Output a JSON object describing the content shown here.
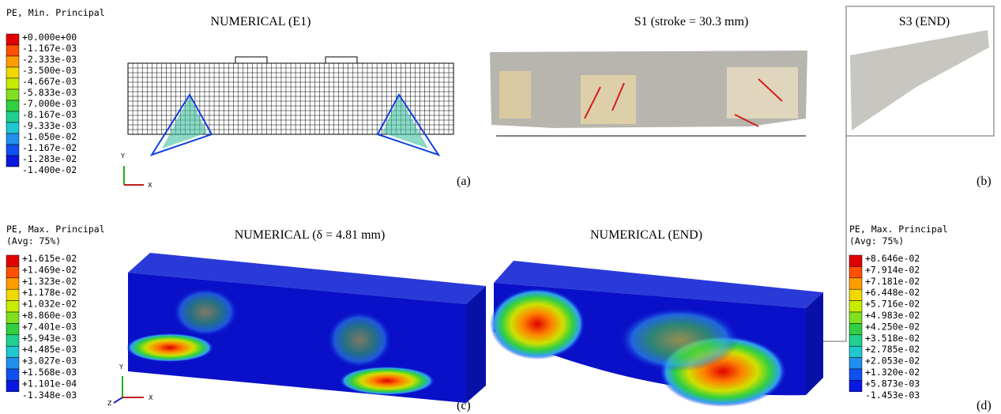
{
  "panels": [
    {
      "title": "NUMERICAL (E1)",
      "label": "(a)"
    },
    {
      "title": "S1 (stroke = 30.3 mm)",
      "label": "(b)"
    },
    {
      "title": "S3 (END)"
    },
    {
      "title": "NUMERICAL (δ = 4.81 mm)",
      "label": "(c)"
    },
    {
      "title": "NUMERICAL (END)",
      "label": "(d)"
    }
  ],
  "legends": [
    {
      "title": "PE, Min. Principal",
      "values": [
        "+0.000e+00",
        "-1.167e-03",
        "-2.333e-03",
        "-3.500e-03",
        "-4.667e-03",
        "-5.833e-03",
        "-7.000e-03",
        "-8.167e-03",
        "-9.333e-03",
        "-1.050e-02",
        "-1.167e-02",
        "-1.283e-02",
        "-1.400e-02"
      ]
    },
    {
      "title": "PE, Max. Principal",
      "subtitle": "(Avg: 75%)",
      "values": [
        "+1.615e-02",
        "+1.469e-02",
        "+1.323e-02",
        "+1.178e-02",
        "+1.032e-02",
        "+8.860e-03",
        "+7.401e-03",
        "+5.943e-03",
        "+4.485e-03",
        "+3.027e-03",
        "+1.568e-03",
        "+1.101e-04",
        "-1.348e-03"
      ]
    },
    {
      "title": "PE, Max. Principal",
      "subtitle": "(Avg: 75%)",
      "values": [
        "+8.646e-02",
        "+7.914e-02",
        "+7.181e-02",
        "+6.448e-02",
        "+5.716e-02",
        "+4.983e-02",
        "+4.250e-02",
        "+3.518e-02",
        "+2.785e-02",
        "+2.053e-02",
        "+1.320e-02",
        "+5.873e-03",
        "-1.453e-03"
      ]
    }
  ],
  "triads": [
    {
      "y": "Y",
      "x": "X"
    },
    {
      "y": "Y",
      "z": "Z",
      "x": "X"
    }
  ]
}
